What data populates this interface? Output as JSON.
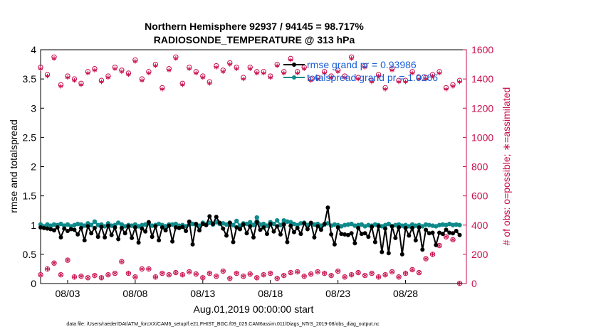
{
  "chart_data": {
    "type": "line",
    "title_line1": "Northern Hemisphere 92937 / 94145 = 98.717%",
    "title_line2": "RADIOSONDE_TEMPERATURE @ 313 hPa",
    "xlabel": "Aug.01,2019 00:00:00 start",
    "ylabel_left": "rmse and totalspread",
    "ylabel_right": "# of obs: o=possible; ∗=assimilated",
    "footer": "data file: /Users/raeder/DAI/ATM_forcXX/CAM6_setup/f.e21.FHIST_BGC.f09_025.CAM6assim.011/Diags_NTrS_2019-08/obs_diag_output.nc",
    "x_range": [
      1,
      32.5
    ],
    "ylim_left": [
      0,
      4
    ],
    "ylim_right": [
      0,
      1600
    ],
    "x_tick_positions": [
      3,
      8,
      13,
      18,
      23,
      28
    ],
    "x_tick_labels": [
      "08/03",
      "08/08",
      "08/13",
      "08/18",
      "08/23",
      "08/28"
    ],
    "y_left_ticks": [
      "0",
      "0.5",
      "1",
      "1.5",
      "2",
      "2.5",
      "3",
      "3.5",
      "4"
    ],
    "y_right_ticks": [
      "0",
      "200",
      "400",
      "600",
      "800",
      "1000",
      "1200",
      "1400",
      "1600"
    ],
    "colors": {
      "rmse": "#000000",
      "spread": "#0f8a8a",
      "obs": "#c8104e",
      "legend_text": "#1a5fd6"
    },
    "series": [
      {
        "name": "rmse grand pr = 0.93986",
        "axis": "left",
        "x": [
          1,
          1.25,
          1.5,
          1.75,
          2,
          2.25,
          2.5,
          2.75,
          3,
          3.25,
          3.5,
          3.75,
          4,
          4.25,
          4.5,
          4.75,
          5,
          5.25,
          5.5,
          5.75,
          6,
          6.25,
          6.5,
          6.75,
          7,
          7.25,
          7.5,
          7.75,
          8,
          8.25,
          8.5,
          8.75,
          9,
          9.25,
          9.5,
          9.75,
          10,
          10.25,
          10.5,
          10.75,
          11,
          11.25,
          11.5,
          11.75,
          12,
          12.25,
          12.5,
          12.75,
          13,
          13.25,
          13.5,
          13.75,
          14,
          14.25,
          14.5,
          14.75,
          15,
          15.25,
          15.5,
          15.75,
          16,
          16.25,
          16.5,
          16.75,
          17,
          17.25,
          17.5,
          17.75,
          18,
          18.25,
          18.5,
          18.75,
          19,
          19.25,
          19.5,
          19.75,
          20,
          20.25,
          20.5,
          20.75,
          21,
          21.25,
          21.5,
          21.75,
          22,
          22.25,
          22.5,
          22.75,
          23,
          23.25,
          23.5,
          23.75,
          24,
          24.25,
          24.5,
          24.75,
          25,
          25.25,
          25.5,
          25.75,
          26,
          26.25,
          26.5,
          26.75,
          27,
          27.25,
          27.5,
          27.75,
          28,
          28.25,
          28.5,
          28.75,
          29,
          29.25,
          29.5,
          29.75,
          30,
          30.25,
          30.5,
          30.75,
          31,
          31.25,
          31.5,
          31.75,
          32
        ],
        "values": [
          0.96,
          0.95,
          0.94,
          0.93,
          0.91,
          0.96,
          0.79,
          0.94,
          0.9,
          0.93,
          0.92,
          0.84,
          0.95,
          0.74,
          0.98,
          0.86,
          0.95,
          0.8,
          0.97,
          0.79,
          0.99,
          0.83,
          0.96,
          0.76,
          0.95,
          0.86,
          0.98,
          0.78,
          0.96,
          0.7,
          0.94,
          0.89,
          1.05,
          0.8,
          0.98,
          0.74,
          0.96,
          0.91,
          0.99,
          0.72,
          0.96,
          0.95,
          0.97,
          0.9,
          1.06,
          0.67,
          1.02,
          0.91,
          1.02,
          1.0,
          1.15,
          1.02,
          1.14,
          1.04,
          0.94,
          0.82,
          1.04,
          0.71,
          0.96,
          0.93,
          1.01,
          0.86,
          0.98,
          0.79,
          1.05,
          0.92,
          0.96,
          0.85,
          1.02,
          0.89,
          0.98,
          0.84,
          1.01,
          0.71,
          0.99,
          0.88,
          0.95,
          0.85,
          1.03,
          0.93,
          1.04,
          0.79,
          0.98,
          0.92,
          1.02,
          1.3,
          0.84,
          0.67,
          0.96,
          0.85,
          0.84,
          0.83,
          0.86,
          0.69,
          0.95,
          0.85,
          0.86,
          0.8,
          0.97,
          0.71,
          0.98,
          0.54,
          0.94,
          0.52,
          0.98,
          0.78,
          0.96,
          0.5,
          0.95,
          0.82,
          0.95,
          0.74,
          0.96,
          0.58,
          0.92,
          0.86,
          0.87,
          0.66,
          0.87,
          0.85,
          0.92,
          0.87,
          0.86,
          0.9,
          0.83
        ]
      },
      {
        "name": "totalspread grand pr = 1.0266",
        "axis": "left",
        "x": [
          1,
          1.25,
          1.5,
          1.75,
          2,
          2.25,
          2.5,
          2.75,
          3,
          3.25,
          3.5,
          3.75,
          4,
          4.25,
          4.5,
          4.75,
          5,
          5.25,
          5.5,
          5.75,
          6,
          6.25,
          6.5,
          6.75,
          7,
          7.25,
          7.5,
          7.75,
          8,
          8.25,
          8.5,
          8.75,
          9,
          9.25,
          9.5,
          9.75,
          10,
          10.25,
          10.5,
          10.75,
          11,
          11.25,
          11.5,
          11.75,
          12,
          12.25,
          12.5,
          12.75,
          13,
          13.25,
          13.5,
          13.75,
          14,
          14.25,
          14.5,
          14.75,
          15,
          15.25,
          15.5,
          15.75,
          16,
          16.25,
          16.5,
          16.75,
          17,
          17.25,
          17.5,
          17.75,
          18,
          18.25,
          18.5,
          18.75,
          19,
          19.25,
          19.5,
          19.75,
          20,
          20.25,
          20.5,
          20.75,
          21,
          21.25,
          21.5,
          21.75,
          22,
          22.25,
          22.5,
          22.75,
          23,
          23.25,
          23.5,
          23.75,
          24,
          24.25,
          24.5,
          24.75,
          25,
          25.25,
          25.5,
          25.75,
          26,
          26.25,
          26.5,
          26.75,
          27,
          27.25,
          27.5,
          27.75,
          28,
          28.25,
          28.5,
          28.75,
          29,
          29.25,
          29.5,
          29.75,
          30,
          30.25,
          30.5,
          30.75,
          31,
          31.25,
          31.5,
          31.75,
          32
        ],
        "values": [
          1.01,
          0.98,
          1.01,
          0.99,
          1.01,
          1.0,
          1.02,
          0.99,
          1.01,
          0.98,
          1.0,
          1.02,
          1.01,
          0.99,
          1.03,
          1.0,
          1.06,
          1.0,
          1.01,
          0.98,
          1.03,
          0.99,
          1.0,
          1.04,
          1.01,
          0.98,
          1.0,
          0.99,
          1.01,
          0.98,
          1.0,
          1.01,
          1.03,
          0.99,
          1.0,
          1.02,
          1.0,
          0.98,
          1.01,
          1.01,
          1.02,
          0.99,
          1.0,
          0.98,
          1.01,
          1.02,
          1.01,
          0.99,
          1.04,
          1.01,
          1.04,
          1.01,
          1.05,
          1.02,
          1.03,
          1.01,
          1.04,
          1.0,
          1.07,
          0.99,
          1.03,
          1.02,
          1.05,
          1.0,
          1.13,
          1.01,
          1.02,
          0.99,
          1.05,
          1.02,
          1.08,
          1.0,
          1.08,
          1.06,
          1.05,
          1.02,
          1.0,
          1.03,
          1.04,
          1.0,
          1.03,
          1.01,
          1.02,
          0.99,
          1.01,
          1.03,
          0.99,
          1.01,
          1.0,
          0.98,
          1.0,
          1.01,
          1.02,
          0.99,
          1.0,
          1.01,
          0.98,
          1.0,
          0.99,
          1.01,
          1.0,
          0.98,
          1.0,
          1.02,
          0.98,
          1.0,
          1.01,
          0.99,
          1.0,
          0.98,
          1.01,
          0.99,
          1.0,
          0.98,
          1.01,
          1.0,
          0.99,
          0.98,
          1.0,
          1.01,
          1.0,
          1.02,
          1.0,
          1.01,
          1.0
        ]
      },
      {
        "name": "obs possible",
        "axis": "right",
        "marker": "o",
        "x": [
          1,
          1.5,
          2,
          2.5,
          3,
          3.5,
          4,
          4.5,
          5,
          5.5,
          6,
          6.5,
          7,
          7.5,
          8,
          8.5,
          9,
          9.5,
          10,
          10.5,
          11,
          11.5,
          12,
          12.5,
          13,
          13.5,
          14,
          14.5,
          15,
          15.5,
          16,
          16.5,
          17,
          17.5,
          18,
          18.5,
          19,
          19.5,
          20,
          20.5,
          21,
          21.5,
          22,
          22.5,
          23,
          23.5,
          24,
          24.5,
          25,
          25.5,
          26,
          26.5,
          27,
          27.5,
          28,
          28.5,
          29,
          29.5,
          30,
          30.5,
          31,
          31.5,
          32
        ],
        "values": [
          1480,
          1430,
          1550,
          1360,
          1420,
          1400,
          1370,
          1450,
          1470,
          1390,
          1420,
          1480,
          1460,
          1440,
          1530,
          1400,
          1450,
          1500,
          1340,
          1470,
          1550,
          1370,
          1480,
          1450,
          1420,
          1380,
          1490,
          1460,
          1510,
          1480,
          1410,
          1480,
          1450,
          1450,
          1420,
          1500,
          1450,
          1540,
          1450,
          1480,
          1400,
          1410,
          1450,
          1420,
          1460,
          1420,
          1550,
          1410,
          1490,
          1390,
          1430,
          1340,
          1470,
          1390,
          1390,
          1450,
          1410,
          1410,
          1430,
          1450,
          1340,
          1360,
          1390
        ],
        "values_low": [
          60,
          100,
          140,
          60,
          160,
          45,
          50,
          40,
          55,
          40,
          60,
          70,
          150,
          70,
          45,
          100,
          100,
          45,
          70,
          60,
          75,
          60,
          80,
          65,
          40,
          70,
          50,
          85,
          35,
          70,
          50,
          65,
          40,
          60,
          70,
          35,
          55,
          75,
          80,
          50,
          65,
          80,
          70,
          55,
          85,
          45,
          60,
          75,
          55,
          70,
          45,
          60,
          80,
          45,
          70,
          95,
          75,
          170,
          200,
          260,
          320,
          300,
          1
        ]
      },
      {
        "name": "obs assimilated",
        "axis": "right",
        "marker": "*",
        "x": [
          1,
          1.5,
          2,
          2.5,
          3,
          3.5,
          4,
          4.5,
          5,
          5.5,
          6,
          6.5,
          7,
          7.5,
          8,
          8.5,
          9,
          9.5,
          10,
          10.5,
          11,
          11.5,
          12,
          12.5,
          13,
          13.5,
          14,
          14.5,
          15,
          15.5,
          16,
          16.5,
          17,
          17.5,
          18,
          18.5,
          19,
          19.5,
          20,
          20.5,
          21,
          21.5,
          22,
          22.5,
          23,
          23.5,
          24,
          24.5,
          25,
          25.5,
          26,
          26.5,
          27,
          27.5,
          28,
          28.5,
          29,
          29.5,
          30,
          30.5,
          31,
          31.5,
          32
        ],
        "values": [
          1470,
          1420,
          1540,
          1350,
          1410,
          1390,
          1360,
          1440,
          1460,
          1380,
          1410,
          1470,
          1450,
          1430,
          1520,
          1390,
          1440,
          1490,
          1330,
          1460,
          1540,
          1360,
          1470,
          1440,
          1410,
          1370,
          1480,
          1450,
          1500,
          1470,
          1400,
          1470,
          1440,
          1440,
          1410,
          1490,
          1440,
          1530,
          1440,
          1470,
          1390,
          1400,
          1440,
          1410,
          1450,
          1410,
          1540,
          1400,
          1480,
          1380,
          1420,
          1330,
          1460,
          1380,
          1380,
          1440,
          1400,
          1400,
          1420,
          1440,
          1330,
          1350,
          1380
        ],
        "values_low": [
          60,
          100,
          140,
          60,
          160,
          45,
          50,
          40,
          55,
          40,
          60,
          70,
          150,
          70,
          45,
          100,
          100,
          45,
          70,
          60,
          75,
          60,
          80,
          65,
          40,
          70,
          50,
          85,
          35,
          70,
          50,
          65,
          40,
          60,
          70,
          35,
          55,
          75,
          80,
          50,
          65,
          80,
          70,
          55,
          85,
          45,
          60,
          75,
          55,
          70,
          45,
          60,
          80,
          45,
          70,
          95,
          75,
          170,
          200,
          260,
          320,
          300,
          1
        ]
      }
    ]
  }
}
